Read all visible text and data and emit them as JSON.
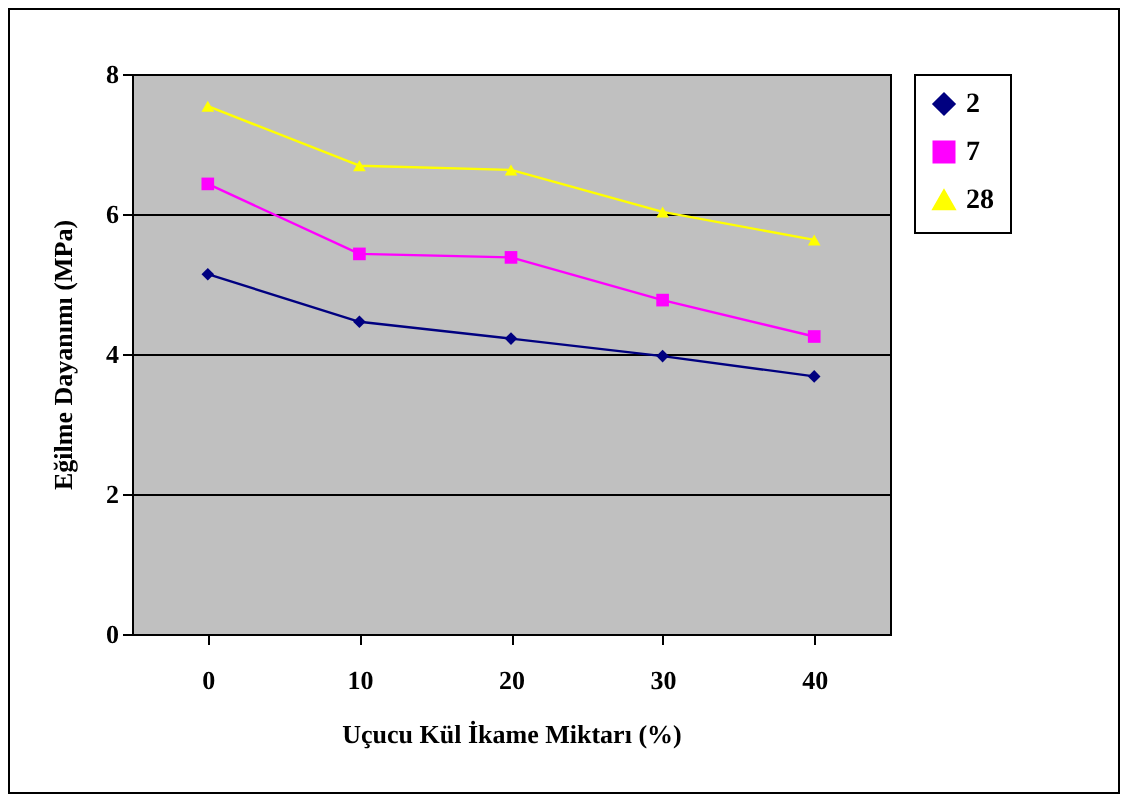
{
  "chart_data": {
    "type": "line",
    "xlabel": "Uçucu Kül İkame Miktarı (%)",
    "ylabel": "Eğilme Dayanımı (MPa)",
    "categories": [
      "0",
      "10",
      "20",
      "30",
      "40"
    ],
    "ylim": [
      0,
      8
    ],
    "yticks": [
      0,
      2,
      4,
      6,
      8
    ],
    "grid": "y",
    "legend": "right",
    "line_style": "solid",
    "series": [
      {
        "name": "2",
        "color": "#000080",
        "marker": "diamond",
        "values": [
          5.14,
          4.46,
          4.22,
          3.97,
          3.68
        ]
      },
      {
        "name": "7",
        "color": "#ff00ff",
        "marker": "square",
        "values": [
          6.43,
          5.43,
          5.38,
          4.77,
          4.25
        ]
      },
      {
        "name": "28",
        "color": "#ffff00",
        "marker": "triangle",
        "values": [
          7.54,
          6.69,
          6.63,
          6.03,
          5.63
        ]
      }
    ]
  }
}
